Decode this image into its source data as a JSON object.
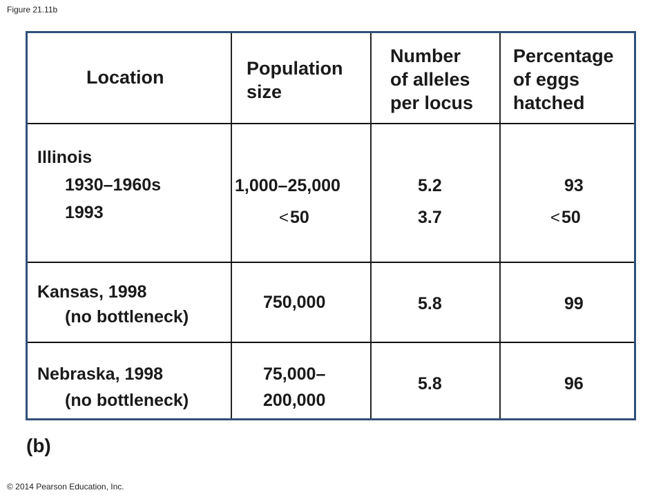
{
  "figure_label": "Figure 21.11b",
  "panel_label": "(b)",
  "copyright": "© 2014 Pearson Education, Inc.",
  "headers": {
    "location": "Location",
    "population_size_1": "Population",
    "population_size_2": "size",
    "alleles_1": "Number",
    "alleles_2": "of alleles",
    "alleles_3": "per locus",
    "eggs_1": "Percentage",
    "eggs_2": "of eggs",
    "eggs_3": "hatched"
  },
  "rows": [
    {
      "location": "Illinois",
      "period_1": "1930–1960s",
      "period_2": "1993",
      "population_1": "1,000–25,000",
      "population_2_symbol": "<",
      "population_2": "50",
      "alleles_1": "5.2",
      "alleles_2": "3.7",
      "eggs_1": "93",
      "eggs_2_symbol": "<",
      "eggs_2": "50"
    },
    {
      "location": "Kansas, 1998",
      "note": "(no bottleneck)",
      "population": "750,000",
      "alleles": "5.8",
      "eggs": "99"
    },
    {
      "location": "Nebraska, 1998",
      "note": "(no bottleneck)",
      "population_1": "75,000–",
      "population_2": "200,000",
      "alleles": "5.8",
      "eggs": "96"
    }
  ]
}
